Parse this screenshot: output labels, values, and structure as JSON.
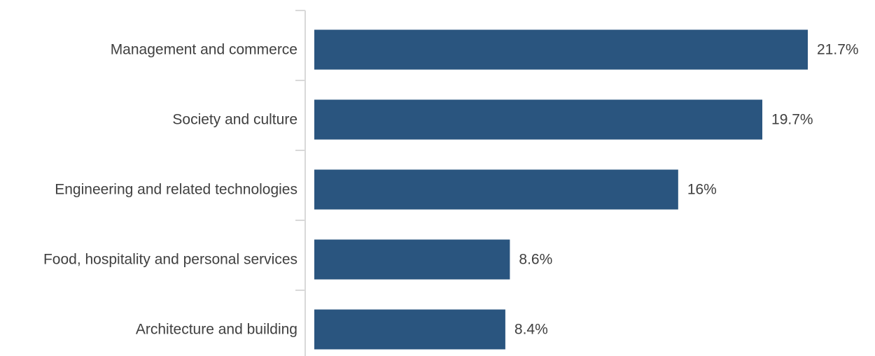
{
  "chart_data": {
    "type": "bar",
    "orientation": "horizontal",
    "title": "",
    "xlabel": "",
    "ylabel": "",
    "categories": [
      "Management and commerce",
      "Society and culture",
      "Engineering and related technologies",
      "Food, hospitality and personal services",
      "Architecture and building"
    ],
    "values": [
      21.7,
      19.7,
      16,
      8.6,
      8.4
    ],
    "value_labels": [
      "21.7%",
      "19.7%",
      "16%",
      "8.6%",
      "8.4%"
    ],
    "xlim": [
      0,
      21.7
    ],
    "grid": false,
    "legend": "none",
    "bar_color": "#2a557f",
    "axis_color": "#d9d9d9"
  }
}
